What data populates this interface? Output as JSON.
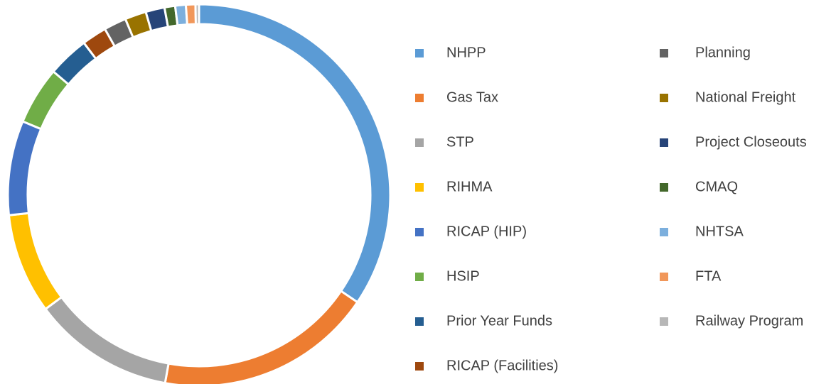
{
  "chart_data": {
    "type": "donut",
    "categories": [
      "NHPP",
      "Gas Tax",
      "STP",
      "RIHMA",
      "RICAP (HIP)",
      "HSIP",
      "Prior Year Funds",
      "RICAP (Facilities)",
      "Planning",
      "National Freight",
      "Project Closeouts",
      "CMAQ",
      "NHTSA",
      "FTA",
      "Railway Program"
    ],
    "values": [
      34.5,
      18.4,
      12,
      8.5,
      8,
      4.9,
      3.5,
      2.1,
      1.9,
      1.8,
      1.6,
      0.9,
      0.9,
      0.8,
      0.3
    ],
    "colors": [
      "#5b9bd5",
      "#ed7d31",
      "#a5a5a5",
      "#ffc000",
      "#4472c4",
      "#70ad47",
      "#255e91",
      "#9e480e",
      "#636363",
      "#997300",
      "#264478",
      "#43682b",
      "#7cafdd",
      "#f1975a",
      "#b7b7b7"
    ],
    "legend": "right"
  }
}
